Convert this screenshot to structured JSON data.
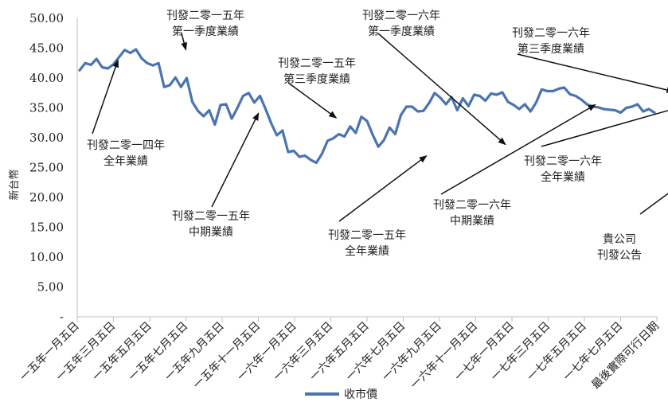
{
  "chart_data": {
    "type": "line",
    "ylabel": "新台幣",
    "ylim": [
      0,
      50
    ],
    "y_ticks": [
      "-",
      "5.00",
      "10.00",
      "15.00",
      "20.00",
      "25.00",
      "30.00",
      "35.00",
      "40.00",
      "45.00",
      "50.00"
    ],
    "x_ticks": [
      "一五年一月五日",
      "一五年三月五日",
      "一五年五月五日",
      "一五年七月五日",
      "一五年九月五日",
      "一五年十一月五日",
      "一六年一月五日",
      "一六年三月五日",
      "一六年五月五日",
      "一六年七月五日",
      "一六年九月五日",
      "一六年十一月五日",
      "一七年一月五日",
      "一七年三月五日",
      "一七年五月五日",
      "一七年七月五日",
      "最後實際可行日期"
    ],
    "legend": {
      "position": "bottom",
      "label": "收市價"
    },
    "series_color": "#4a74b0",
    "series": [
      {
        "name": "收市價",
        "values": [
          41.3,
          42.5,
          42.2,
          43.2,
          41.8,
          41.6,
          42.3,
          43.5,
          44.7,
          44.2,
          44.8,
          43.3,
          42.5,
          42.1,
          42.5,
          38.5,
          38.8,
          40.1,
          38.5,
          40.0,
          36.0,
          34.5,
          33.6,
          34.6,
          32.2,
          35.5,
          35.6,
          33.2,
          35.0,
          37.0,
          37.5,
          35.9,
          37.0,
          34.8,
          32.4,
          30.4,
          31.2,
          27.6,
          27.8,
          26.8,
          27.0,
          26.3,
          25.8,
          27.3,
          29.5,
          29.9,
          30.6,
          30.2,
          31.9,
          30.8,
          33.5,
          32.8,
          30.5,
          28.5,
          29.6,
          31.7,
          30.6,
          33.8,
          35.2,
          35.2,
          34.4,
          34.5,
          35.8,
          37.5,
          36.7,
          35.6,
          36.8,
          34.6,
          36.6,
          35.3,
          37.2,
          37.0,
          36.2,
          37.4,
          37.2,
          37.6,
          36.0,
          35.5,
          34.8,
          35.6,
          34.4,
          35.9,
          38.1,
          37.8,
          37.8,
          38.2,
          38.4,
          37.3,
          37.0,
          36.4,
          35.6,
          35.2,
          35.1,
          34.8,
          34.7,
          34.6,
          34.2,
          35.0,
          35.2,
          35.6,
          34.4,
          34.8,
          34.2
        ]
      }
    ],
    "annotations": [
      {
        "label": [
          "刊發二零一四年",
          "全年業績"
        ],
        "x_index": 7,
        "y": 43.5
      },
      {
        "label": [
          "刊發二零一五年",
          "第一季度業績"
        ],
        "x_index": 19,
        "y": 44.2
      },
      {
        "label": [
          "刊發二零一五年",
          "中期業績"
        ],
        "x_index": 32,
        "y": 34.6
      },
      {
        "label": [
          "刊發二零一五年",
          "第三季度業績"
        ],
        "x_index": 46,
        "y": 33.0
      },
      {
        "label": [
          "刊發二零一五年",
          "全年業績"
        ],
        "x_index": 62,
        "y": 27.3
      },
      {
        "label": [
          "刊發二零一六年",
          "第一季度業績"
        ],
        "x_index": 76,
        "y": 28.5
      },
      {
        "label": [
          "刊發二零一六年",
          "中期業績"
        ],
        "x_index": 92,
        "y": 35.8
      },
      {
        "label": [
          "刊發二零一六年",
          "第三季度業績"
        ],
        "x_index": 106,
        "y": 37.6
      },
      {
        "label": [
          "刊發二零一六年",
          "全年業績"
        ],
        "x_index": 118,
        "y": 38.2
      },
      {
        "label": [
          "貴公司",
          "刊發公告"
        ],
        "x_index": 125,
        "y": 35.0
      }
    ]
  }
}
